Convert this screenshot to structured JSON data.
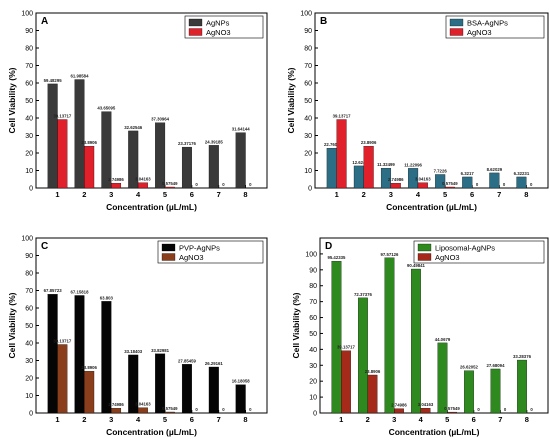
{
  "chart_data": [
    {
      "type": "bar",
      "panel_label": "A",
      "xlabel": "Concentration (µL/mL)",
      "ylabel": "Cell Viability (%)",
      "ylim": [
        0,
        100
      ],
      "yticks": [
        0,
        10,
        20,
        30,
        40,
        50,
        60,
        70,
        80,
        90,
        100
      ],
      "categories": [
        "1",
        "2",
        "3",
        "4",
        "5",
        "6",
        "7",
        "8"
      ],
      "legend_position": "top-right",
      "series": [
        {
          "name": "AgNPs",
          "color": "#3a3a3a",
          "values": [
            59.48295,
            61.98584,
            43.65095,
            32.62546,
            37.30964,
            23.37176,
            24.39185,
            31.64144
          ],
          "labels": [
            "59.48295",
            "61.98584",
            "43.65095",
            "32.62546",
            "37.30964",
            "23.37176",
            "24.39185",
            "31.64144"
          ]
        },
        {
          "name": "AgNO3",
          "color": "#e0202a",
          "values": [
            39.13717,
            23.8906,
            2.74986,
            3.04163,
            0.57549,
            0,
            0,
            0
          ],
          "labels": [
            "39.13717",
            "23.8906",
            "2.74986",
            "3.04163",
            "0.57549",
            "0",
            "0",
            "0"
          ]
        }
      ]
    },
    {
      "type": "bar",
      "panel_label": "B",
      "xlabel": "Concentration (µL/mL)",
      "ylabel": "Cell Viability (%)",
      "ylim": [
        0,
        100
      ],
      "yticks": [
        0,
        10,
        20,
        30,
        40,
        50,
        60,
        70,
        80,
        90,
        100
      ],
      "categories": [
        "1",
        "2",
        "3",
        "4",
        "5",
        "6",
        "7",
        "8"
      ],
      "legend_position": "top-right",
      "series": [
        {
          "name": "BSA-AgNPs",
          "color": "#2b6e86",
          "values": [
            22.7609,
            12.624,
            11.32499,
            11.22096,
            7.7226,
            6.3217,
            8.62029,
            6.32231
          ],
          "labels": [
            "22.7609",
            "12.624",
            "11.32499",
            "11.22096",
            "7.7226",
            "6.3217",
            "8.62029",
            "6.32231"
          ]
        },
        {
          "name": "AgNO3",
          "color": "#e0202a",
          "values": [
            39.13717,
            23.8906,
            2.74986,
            3.04163,
            0.57549,
            0,
            0,
            0
          ],
          "labels": [
            "39.13717",
            "23.8906",
            "2.74986",
            "3.04163",
            "0.57549",
            "0",
            "0",
            "0"
          ]
        }
      ]
    },
    {
      "type": "bar",
      "panel_label": "C",
      "xlabel": "Concentration (µL/mL)",
      "ylabel": "Cell Viability (%)",
      "ylim": [
        0,
        100
      ],
      "yticks": [
        0,
        10,
        20,
        30,
        40,
        50,
        60,
        70,
        80,
        90,
        100
      ],
      "categories": [
        "1",
        "2",
        "3",
        "4",
        "5",
        "6",
        "7",
        "8"
      ],
      "legend_position": "top-right",
      "series": [
        {
          "name": "PVP-AgNPs",
          "color": "#050505",
          "values": [
            67.85723,
            67.15818,
            63.803,
            33.18403,
            33.82981,
            27.85459,
            26.29161,
            16.18058
          ],
          "labels": [
            "67.85723",
            "67.15818",
            "63.803",
            "33.18403",
            "33.82981",
            "27.85459",
            "26.29161",
            "16.18058"
          ]
        },
        {
          "name": "AgNO3",
          "color": "#8a3e1c",
          "values": [
            39.13717,
            23.8906,
            2.74986,
            3.04163,
            0.57549,
            0,
            0,
            0
          ],
          "labels": [
            "39.13717",
            "23.8906",
            "2.74986",
            "3.04163",
            "0.57549",
            "0",
            "0",
            "0"
          ]
        }
      ]
    },
    {
      "type": "bar",
      "panel_label": "D",
      "xlabel": "Concentration (µL/mL)",
      "ylabel": "Cell Viability  (%)",
      "ylim": [
        0,
        110
      ],
      "yticks": [
        0,
        10,
        20,
        30,
        40,
        50,
        60,
        70,
        80,
        90,
        100
      ],
      "categories": [
        "1",
        "2",
        "3",
        "4",
        "5",
        "6",
        "7",
        "8"
      ],
      "legend_position": "top-right",
      "series": [
        {
          "name": "Liposomal-AgNPs",
          "color": "#2e8a1e",
          "values": [
            95.42335,
            72.37376,
            97.57126,
            90.49841,
            44.0679,
            26.62052,
            27.68094,
            33.28376
          ],
          "labels": [
            "95.42335",
            "72.37376",
            "97.57126",
            "90.49841",
            "44.0679",
            "26.62052",
            "27.68094",
            "33.28376"
          ]
        },
        {
          "name": "AgNO3",
          "color": "#a52a1a",
          "values": [
            39.13717,
            23.8906,
            2.74986,
            3.04163,
            0.57549,
            0,
            0,
            0
          ],
          "labels": [
            "39.13717",
            "23.8906",
            "2.74986",
            "3.04163",
            "0.57549",
            "0",
            "0",
            "0"
          ]
        }
      ]
    }
  ]
}
